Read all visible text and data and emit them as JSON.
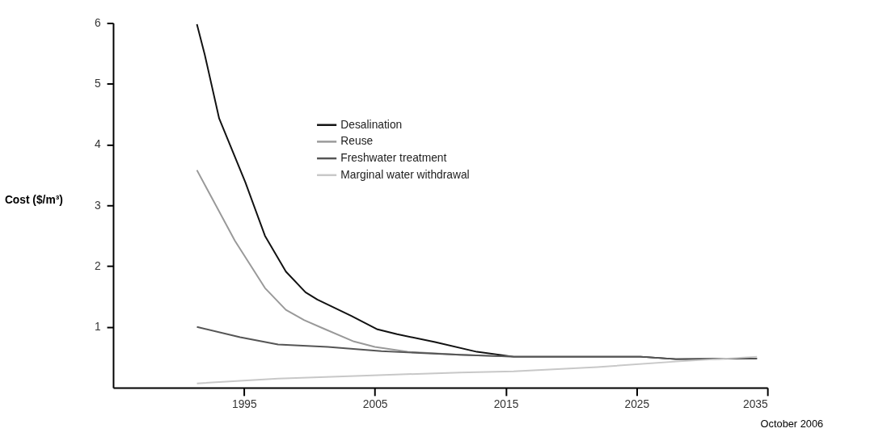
{
  "chart_data": {
    "type": "line",
    "ylabel": "Cost ($/m³)",
    "xlim": [
      1985,
      2035
    ],
    "xticks": [
      1995,
      2005,
      2015,
      2025,
      2035
    ],
    "ylim": [
      0,
      6
    ],
    "yticks": [
      1,
      2,
      3,
      4,
      5,
      6
    ],
    "grid": false,
    "legend": "top",
    "marker": "none",
    "line_style": "solid",
    "annotations": [
      "October 2006"
    ],
    "series": [
      {
        "name": "Desalination",
        "color": "#111111",
        "x": [
          1991.4,
          1992,
          1993.1,
          1995.1,
          1996.6,
          1998.2,
          1999.7,
          2000.6,
          2003.2,
          2005.2,
          2006.7,
          2009.6,
          2012.8,
          2015.6,
          2022,
          2025.3,
          2028,
          2034.2
        ],
        "values": [
          5.98,
          5.48,
          4.43,
          3.38,
          2.5,
          1.91,
          1.57,
          1.45,
          1.18,
          0.96,
          0.88,
          0.75,
          0.59,
          0.51,
          0.51,
          0.51,
          0.47,
          0.48
        ]
      },
      {
        "name": "Reuse",
        "color": "#999999",
        "x": [
          1991.4,
          1994.3,
          1996.6,
          1998.2,
          1999.6,
          2001,
          2003.4,
          2005,
          2007.5,
          2011.5,
          2015.6
        ],
        "values": [
          3.58,
          2.42,
          1.64,
          1.28,
          1.11,
          0.98,
          0.76,
          0.67,
          0.59,
          0.54,
          0.51
        ]
      },
      {
        "name": "Freshwater treatment",
        "color": "#555555",
        "x": [
          1991.4,
          1994.7,
          1997.6,
          2001.4,
          2005.5,
          2011.5,
          2015.6,
          2022,
          2025.3,
          2028,
          2034.2
        ],
        "values": [
          1.0,
          0.83,
          0.71,
          0.67,
          0.6,
          0.54,
          0.51,
          0.51,
          0.51,
          0.47,
          0.48
        ]
      },
      {
        "name": "Marginal water withdrawal",
        "color": "#c8c8c8",
        "x": [
          1991.4,
          1997.6,
          2004.4,
          2011.5,
          2015.6,
          2022,
          2028,
          2034.2
        ],
        "values": [
          0.07,
          0.15,
          0.2,
          0.25,
          0.27,
          0.34,
          0.43,
          0.51
        ]
      }
    ]
  }
}
